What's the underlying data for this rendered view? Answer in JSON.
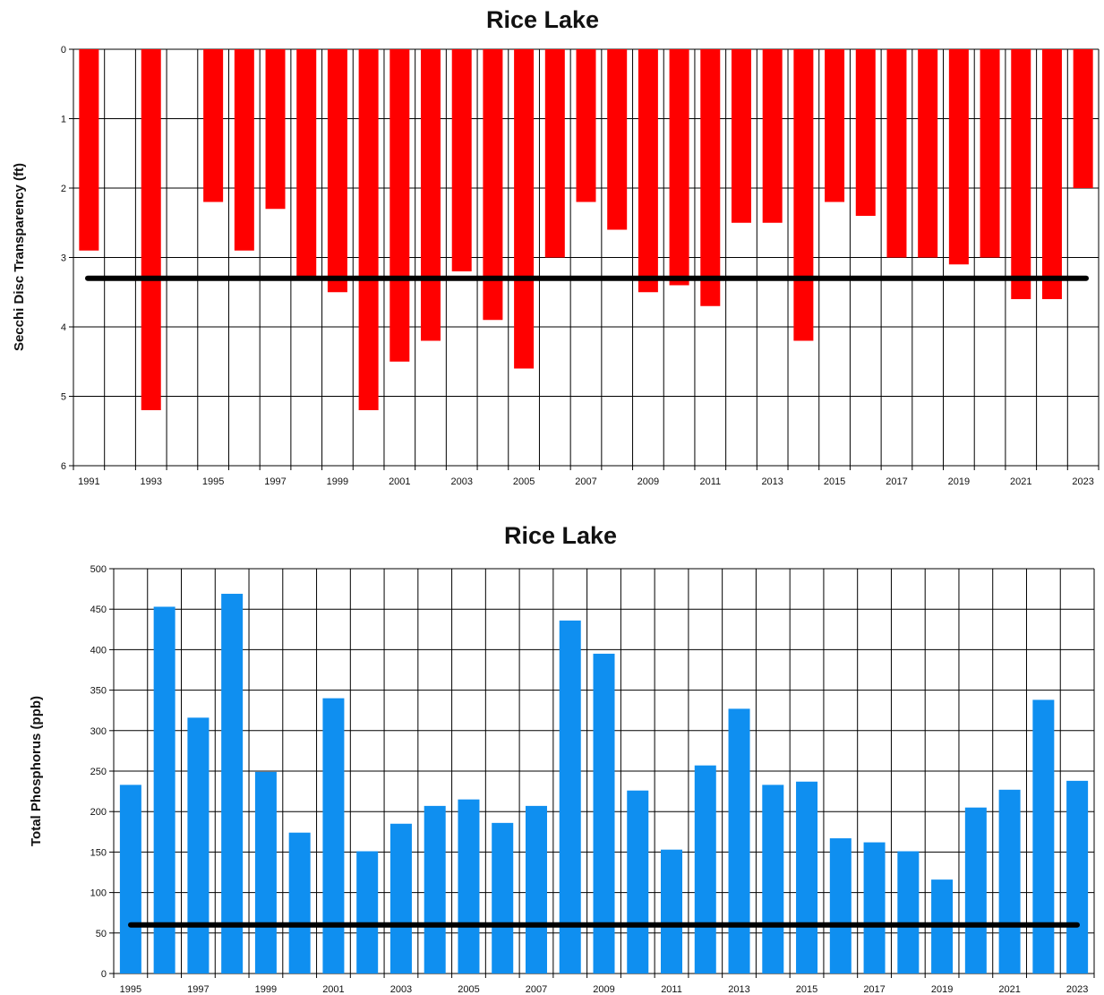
{
  "colors": {
    "secchi_bar": "#ff0000",
    "phosphorus_bar": "#0f8ff0",
    "reference_line": "#000000",
    "grid": "#000000"
  },
  "chart_data": [
    {
      "type": "bar",
      "title": "Rice Lake",
      "xlabel": "",
      "ylabel": "Secchi Disc Transparency (ft)",
      "ylim": [
        0,
        6
      ],
      "y_inverted": true,
      "y_ticks": [
        "0",
        "1",
        "2",
        "3",
        "4",
        "5",
        "6"
      ],
      "x_tick_labels": [
        "1991",
        "1993",
        "1995",
        "1997",
        "1999",
        "2001",
        "2003",
        "2005",
        "2007",
        "2009",
        "2011",
        "2013",
        "2015",
        "2017",
        "2019",
        "2021",
        "2023"
      ],
      "categories": [
        "1991",
        "1992",
        "1993",
        "1994",
        "1995",
        "1996",
        "1997",
        "1998",
        "1999",
        "2000",
        "2001",
        "2002",
        "2003",
        "2004",
        "2005",
        "2006",
        "2007",
        "2008",
        "2009",
        "2010",
        "2011",
        "2012",
        "2013",
        "2014",
        "2015",
        "2016",
        "2017",
        "2018",
        "2019",
        "2020",
        "2021",
        "2022",
        "2023"
      ],
      "values": [
        2.9,
        null,
        5.2,
        null,
        2.2,
        2.9,
        2.3,
        3.3,
        3.5,
        5.2,
        4.5,
        4.2,
        3.2,
        3.9,
        4.6,
        3.0,
        2.2,
        2.6,
        3.5,
        3.4,
        3.7,
        2.5,
        2.5,
        4.2,
        2.2,
        2.4,
        3.0,
        3.0,
        3.1,
        3.0,
        3.6,
        3.6,
        2.0
      ],
      "reference_line": 3.3,
      "grid": true
    },
    {
      "type": "bar",
      "title": "Rice Lake",
      "xlabel": "",
      "ylabel": "Total Phosphorus (ppb)",
      "ylim": [
        0,
        500
      ],
      "y_ticks": [
        "0",
        "50",
        "100",
        "150",
        "200",
        "250",
        "300",
        "350",
        "400",
        "450",
        "500"
      ],
      "x_tick_labels": [
        "1995",
        "1997",
        "1999",
        "2001",
        "2003",
        "2005",
        "2007",
        "2009",
        "2011",
        "2013",
        "2015",
        "2017",
        "2019",
        "2021",
        "2023"
      ],
      "categories": [
        "1995",
        "1996",
        "1997",
        "1998",
        "1999",
        "2000",
        "2001",
        "2002",
        "2003",
        "2004",
        "2005",
        "2006",
        "2007",
        "2008",
        "2009",
        "2010",
        "2011",
        "2012",
        "2013",
        "2014",
        "2015",
        "2016",
        "2017",
        "2018",
        "2019",
        "2020",
        "2021",
        "2022",
        "2023"
      ],
      "values": [
        233,
        453,
        316,
        469,
        249,
        174,
        340,
        151,
        185,
        207,
        215,
        186,
        207,
        436,
        395,
        226,
        153,
        257,
        327,
        233,
        237,
        167,
        162,
        151,
        116,
        205,
        227,
        338,
        238
      ],
      "reference_line": 60,
      "grid": true
    }
  ]
}
